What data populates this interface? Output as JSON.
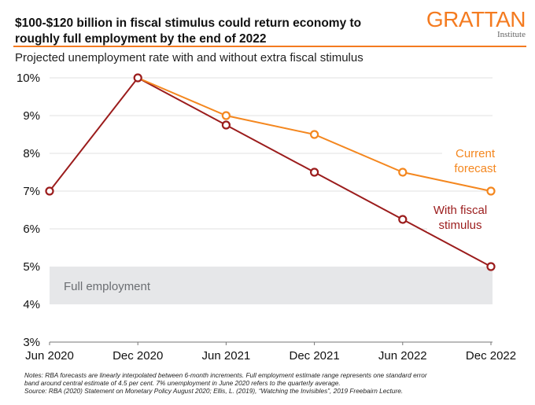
{
  "header": {
    "title": "$100-$120 billion in fiscal stimulus could return economy to roughly full employment by the end of 2022",
    "subtitle": "Projected unemployment rate with and without extra fiscal stimulus",
    "logo_main": "GRATTAN",
    "logo_sub": "Institute"
  },
  "colors": {
    "accent": "#f47b20",
    "current": "#f4871f",
    "stimulus": "#9b1c1c",
    "band": "#e6e7e9",
    "grid": "#e2e2e2"
  },
  "chart_data": {
    "type": "line",
    "title": "Projected unemployment rate with and without extra fiscal stimulus",
    "xlabel": "",
    "ylabel": "",
    "categories": [
      "Jun 2020",
      "Dec 2020",
      "Jun 2021",
      "Dec 2021",
      "Jun 2022",
      "Dec 2022"
    ],
    "y_ticks": [
      "3%",
      "4%",
      "5%",
      "6%",
      "7%",
      "8%",
      "9%",
      "10%"
    ],
    "ylim": [
      3,
      10
    ],
    "grid": true,
    "series": [
      {
        "name": "Current forecast",
        "label_lines": [
          "Current",
          "forecast"
        ],
        "values": [
          null,
          10,
          9,
          8.5,
          7.5,
          7
        ]
      },
      {
        "name": "With fiscal stimulus",
        "label_lines": [
          "With fiscal",
          "stimulus"
        ],
        "values": [
          7,
          10,
          8.75,
          7.5,
          6.25,
          5
        ]
      }
    ],
    "band": {
      "label": "Full employment",
      "from": 4,
      "to": 5
    }
  },
  "notes": {
    "line1": "Notes: RBA forecasts are linearly interpolated between 6-month increments. Full employment estimate range represents one standard error",
    "line2": "band around central estimate of 4.5 per cent. 7% unemployment in June 2020 refers to the quarterly average.",
    "line3": "Source: RBA (2020) Statement on Monetary Policy August 2020; Ellis, L. (2019), “Watching the Invisibles”, 2019 Freebairn Lecture."
  }
}
